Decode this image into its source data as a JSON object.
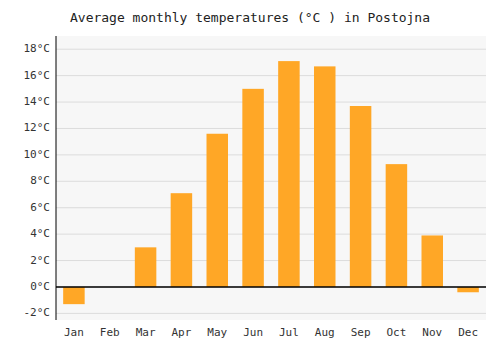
{
  "chart_data": {
    "type": "bar",
    "title": "Average monthly temperatures (°C ) in Postojna",
    "categories": [
      "Jan",
      "Feb",
      "Mar",
      "Apr",
      "May",
      "Jun",
      "Jul",
      "Aug",
      "Sep",
      "Oct",
      "Nov",
      "Dec"
    ],
    "values": [
      -1.3,
      0.0,
      3.0,
      7.1,
      11.6,
      15.0,
      17.1,
      16.7,
      13.7,
      9.3,
      3.9,
      -0.4
    ],
    "color": "#FFA726",
    "ylim": [
      -2.5,
      19
    ],
    "yticks": [
      {
        "value": -2,
        "label": "-2°C"
      },
      {
        "value": 0,
        "label": "0°C"
      },
      {
        "value": 2,
        "label": "2°C"
      },
      {
        "value": 4,
        "label": "4°C"
      },
      {
        "value": 6,
        "label": "6°C"
      },
      {
        "value": 8,
        "label": "8°C"
      },
      {
        "value": 10,
        "label": "10°C"
      },
      {
        "value": 12,
        "label": "12°C"
      },
      {
        "value": 14,
        "label": "14°C"
      },
      {
        "value": 16,
        "label": "16°C"
      },
      {
        "value": 18,
        "label": "18°C"
      }
    ],
    "grid": true
  }
}
